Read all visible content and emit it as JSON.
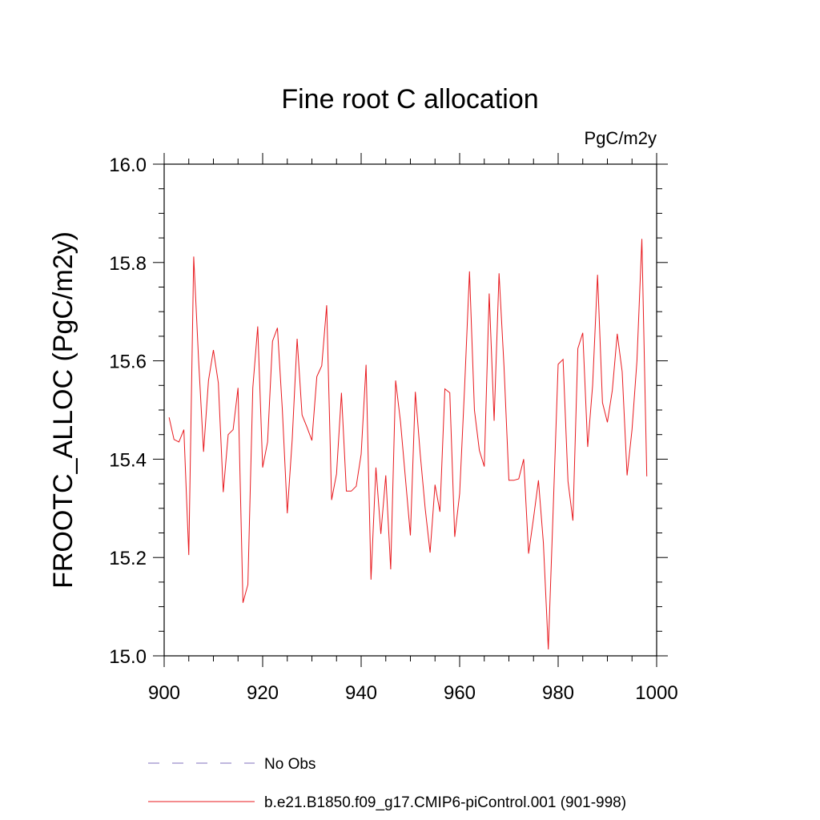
{
  "chart_data": {
    "type": "line",
    "title": "Fine root C allocation",
    "units": "PgC/m2y",
    "ylabel": "FROOTC_ALLOC  (PgC/m2y)",
    "xlabel": "",
    "xlim": [
      900,
      1000
    ],
    "ylim": [
      15.0,
      16.0
    ],
    "xticks": [
      900,
      920,
      940,
      960,
      980,
      1000
    ],
    "yticks": [
      15.0,
      15.2,
      15.4,
      15.6,
      15.8,
      16.0
    ],
    "ytick_labels": [
      "15.0",
      "15.2",
      "15.4",
      "15.6",
      "15.8",
      "16.0"
    ],
    "xtick_labels": [
      "900",
      "920",
      "940",
      "960",
      "980",
      "1000"
    ],
    "series": [
      {
        "name": "b.e21.B1850.f09_g17.CMIP6-piControl.001 (901-998)",
        "color": "#e8191e",
        "style": "solid",
        "x": [
          901,
          902,
          903,
          904,
          905,
          906,
          907,
          908,
          909,
          910,
          911,
          912,
          913,
          914,
          915,
          916,
          917,
          918,
          919,
          920,
          921,
          922,
          923,
          924,
          925,
          926,
          927,
          928,
          929,
          930,
          931,
          932,
          933,
          934,
          935,
          936,
          937,
          938,
          939,
          940,
          941,
          942,
          943,
          944,
          945,
          946,
          947,
          948,
          949,
          950,
          951,
          952,
          953,
          954,
          955,
          956,
          957,
          958,
          959,
          960,
          961,
          962,
          963,
          964,
          965,
          966,
          967,
          968,
          969,
          970,
          971,
          972,
          973,
          974,
          975,
          976,
          977,
          978,
          979,
          980,
          981,
          982,
          983,
          984,
          985,
          986,
          987,
          988,
          989,
          990,
          991,
          992,
          993,
          994,
          995,
          996,
          997,
          998
        ],
        "values": [
          15.485,
          15.44,
          15.435,
          15.46,
          15.205,
          15.812,
          15.6,
          15.415,
          15.56,
          15.622,
          15.555,
          15.333,
          15.45,
          15.46,
          15.545,
          15.108,
          15.145,
          15.545,
          15.67,
          15.383,
          15.435,
          15.64,
          15.667,
          15.5,
          15.29,
          15.44,
          15.645,
          15.49,
          15.465,
          15.438,
          15.568,
          15.59,
          15.713,
          15.317,
          15.37,
          15.535,
          15.335,
          15.335,
          15.345,
          15.41,
          15.592,
          15.155,
          15.383,
          15.248,
          15.367,
          15.176,
          15.56,
          15.475,
          15.36,
          15.245,
          15.537,
          15.41,
          15.3,
          15.21,
          15.348,
          15.293,
          15.543,
          15.535,
          15.242,
          15.33,
          15.545,
          15.782,
          15.5,
          15.418,
          15.385,
          15.737,
          15.478,
          15.778,
          15.59,
          15.357,
          15.357,
          15.36,
          15.4,
          15.208,
          15.28,
          15.357,
          15.23,
          15.013,
          15.3,
          15.593,
          15.603,
          15.355,
          15.275,
          15.625,
          15.657,
          15.425,
          15.55,
          15.775,
          15.515,
          15.475,
          15.54,
          15.655,
          15.578,
          15.367,
          15.46,
          15.6,
          15.848,
          15.365
        ]
      },
      {
        "name": "No Obs",
        "color": "#9b8ec9",
        "style": "dashed",
        "x": [],
        "values": []
      }
    ],
    "legend_position": "bottom"
  }
}
